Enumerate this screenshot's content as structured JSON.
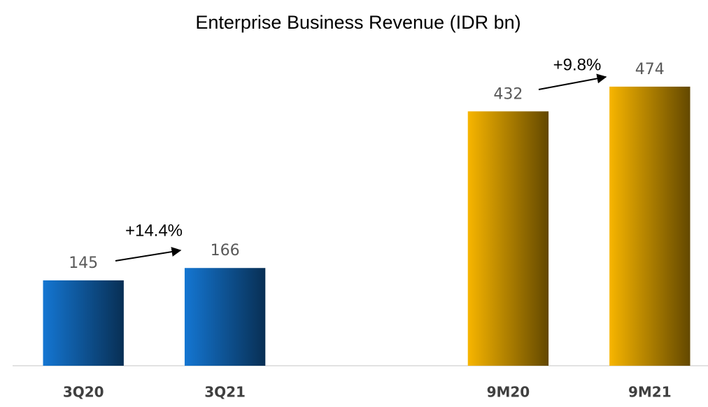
{
  "chart_data": {
    "type": "bar",
    "title": "Enterprise Business Revenue (IDR bn)",
    "categories": [
      "3Q20",
      "3Q21",
      null,
      "9M20",
      "9M21"
    ],
    "values": [
      145,
      166,
      null,
      432,
      474
    ],
    "colors": [
      "#1476d2",
      "#1476d2",
      null,
      "#f7b500",
      "#f7b500"
    ],
    "ylim": [
      0,
      500
    ],
    "annotations": [
      "+14.4%",
      "+9.8%"
    ]
  }
}
